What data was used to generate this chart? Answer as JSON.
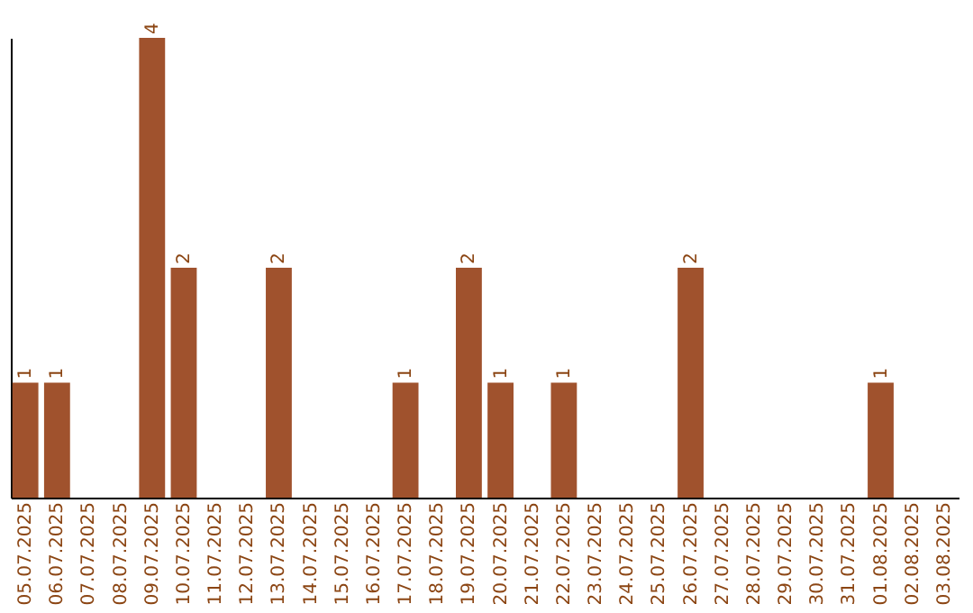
{
  "chart_data": {
    "type": "bar",
    "categories": [
      "05.07.2025",
      "06.07.2025",
      "07.07.2025",
      "08.07.2025",
      "09.07.2025",
      "10.07.2025",
      "11.07.2025",
      "12.07.2025",
      "13.07.2025",
      "14.07.2025",
      "15.07.2025",
      "16.07.2025",
      "17.07.2025",
      "18.07.2025",
      "19.07.2025",
      "20.07.2025",
      "21.07.2025",
      "22.07.2025",
      "23.07.2025",
      "24.07.2025",
      "25.07.2025",
      "26.07.2025",
      "27.07.2025",
      "28.07.2025",
      "29.07.2025",
      "30.07.2025",
      "31.07.2025",
      "01.08.2025",
      "02.08.2025",
      "03.08.2025"
    ],
    "values": [
      1,
      1,
      0,
      0,
      4,
      2,
      0,
      0,
      2,
      0,
      0,
      0,
      1,
      0,
      2,
      1,
      0,
      1,
      0,
      0,
      0,
      2,
      0,
      0,
      0,
      0,
      0,
      1,
      0,
      0
    ],
    "value_labels": [
      "1",
      "1",
      null,
      null,
      "4",
      "2",
      null,
      null,
      "2",
      null,
      null,
      null,
      "1",
      null,
      "2",
      "1",
      null,
      "1",
      null,
      null,
      null,
      "2",
      null,
      null,
      null,
      null,
      null,
      "1",
      null,
      null
    ],
    "color": "#a0522d",
    "ylim": [
      0,
      4
    ],
    "tick_labels": "x",
    "grid": false
  }
}
